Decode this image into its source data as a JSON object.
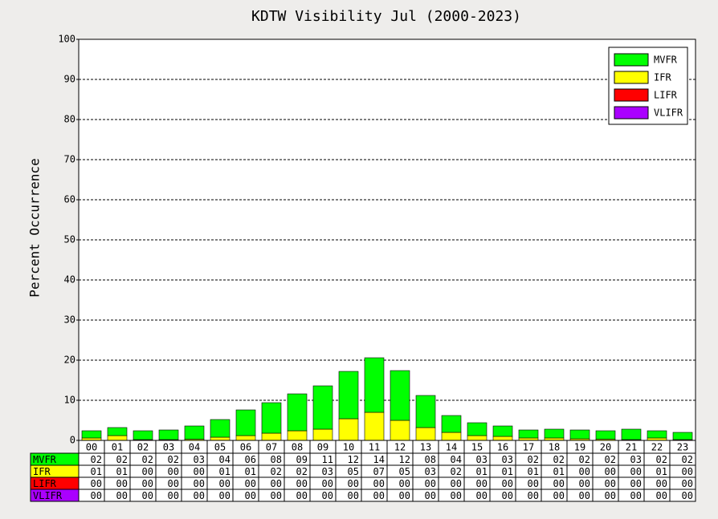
{
  "chart_data": {
    "type": "bar",
    "stacked": true,
    "title": "KDTW Visibility Jul (2000-2023)",
    "ylabel": "Percent Occurrence",
    "categories": [
      "00",
      "01",
      "02",
      "03",
      "04",
      "05",
      "06",
      "07",
      "08",
      "09",
      "10",
      "11",
      "12",
      "13",
      "14",
      "15",
      "16",
      "17",
      "18",
      "19",
      "20",
      "21",
      "22",
      "23"
    ],
    "series": [
      {
        "name": "MVFR",
        "color": "#00ff00",
        "values": [
          1.8,
          2.0,
          2.2,
          2.4,
          3.3,
          4.4,
          6.4,
          7.6,
          9.2,
          10.8,
          11.8,
          13.6,
          12.4,
          8.0,
          4.2,
          3.2,
          2.6,
          2.0,
          2.2,
          2.2,
          2.1,
          2.6,
          1.8,
          1.8
        ],
        "value_labels": [
          "02",
          "02",
          "02",
          "02",
          "03",
          "04",
          "06",
          "08",
          "09",
          "11",
          "12",
          "14",
          "12",
          "08",
          "04",
          "03",
          "03",
          "02",
          "02",
          "02",
          "02",
          "03",
          "02",
          "02"
        ]
      },
      {
        "name": "IFR",
        "color": "#ffff00",
        "values": [
          0.6,
          1.2,
          0.2,
          0.2,
          0.3,
          0.8,
          1.2,
          1.8,
          2.4,
          2.8,
          5.4,
          7.0,
          5.0,
          3.2,
          2.0,
          1.2,
          1.0,
          0.6,
          0.6,
          0.4,
          0.3,
          0.2,
          0.6,
          0.2
        ],
        "value_labels": [
          "01",
          "01",
          "00",
          "00",
          "00",
          "01",
          "01",
          "02",
          "02",
          "03",
          "05",
          "07",
          "05",
          "03",
          "02",
          "01",
          "01",
          "01",
          "01",
          "00",
          "00",
          "00",
          "01",
          "00"
        ]
      },
      {
        "name": "LIFR",
        "color": "#ff0000",
        "values": [
          0,
          0,
          0,
          0,
          0,
          0,
          0,
          0,
          0,
          0,
          0,
          0,
          0,
          0,
          0,
          0,
          0,
          0,
          0,
          0,
          0,
          0,
          0,
          0
        ],
        "value_labels": [
          "00",
          "00",
          "00",
          "00",
          "00",
          "00",
          "00",
          "00",
          "00",
          "00",
          "00",
          "00",
          "00",
          "00",
          "00",
          "00",
          "00",
          "00",
          "00",
          "00",
          "00",
          "00",
          "00",
          "00"
        ]
      },
      {
        "name": "VLIFR",
        "color": "#aa00ff",
        "values": [
          0,
          0,
          0,
          0,
          0,
          0,
          0,
          0,
          0,
          0,
          0,
          0,
          0,
          0,
          0,
          0,
          0,
          0,
          0,
          0,
          0,
          0,
          0,
          0
        ],
        "value_labels": [
          "00",
          "00",
          "00",
          "00",
          "00",
          "00",
          "00",
          "00",
          "00",
          "00",
          "00",
          "00",
          "00",
          "00",
          "00",
          "00",
          "00",
          "00",
          "00",
          "00",
          "00",
          "00",
          "00",
          "00"
        ]
      }
    ],
    "ylim": [
      0,
      100
    ],
    "yticks": [
      0,
      10,
      20,
      30,
      40,
      50,
      60,
      70,
      80,
      90,
      100
    ],
    "grid": true,
    "legend": "upper right"
  }
}
